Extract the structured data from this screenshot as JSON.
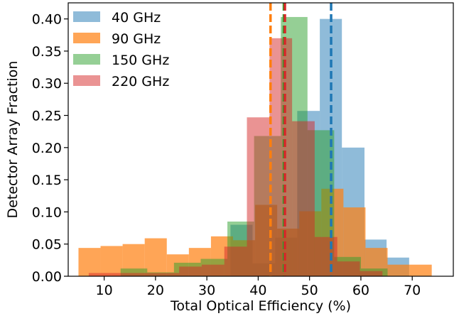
{
  "chart_data": {
    "type": "bar",
    "title": "",
    "xlabel": "Total Optical Efficiency (%)",
    "ylabel": "Detector Array Fraction",
    "xlim": [
      3,
      78
    ],
    "ylim": [
      0,
      0.425
    ],
    "xticks": [
      "10",
      "20",
      "30",
      "40",
      "50",
      "60",
      "70"
    ],
    "yticks": [
      "0.00",
      "0.05",
      "0.10",
      "0.15",
      "0.20",
      "0.25",
      "0.30",
      "0.35",
      "0.40"
    ],
    "xtick_values": [
      10,
      20,
      30,
      40,
      50,
      60,
      70
    ],
    "ytick_values": [
      0,
      0.05,
      0.1,
      0.15,
      0.2,
      0.25,
      0.3,
      0.35,
      0.4
    ],
    "grid": false,
    "legend_position": "top-left",
    "series": [
      {
        "name": "40 GHz",
        "color": "#1f77b4",
        "alpha": 0.5,
        "median_line": 54.2,
        "bins": [
          {
            "x0": 34.6,
            "x1": 38.9,
            "y": 0.08
          },
          {
            "x0": 38.9,
            "x1": 43.3,
            "y": 0.02
          },
          {
            "x0": 43.3,
            "x1": 47.6,
            "y": 0.06
          },
          {
            "x0": 47.6,
            "x1": 52.0,
            "y": 0.257
          },
          {
            "x0": 52.0,
            "x1": 56.3,
            "y": 0.4
          },
          {
            "x0": 56.3,
            "x1": 60.7,
            "y": 0.2
          },
          {
            "x0": 60.7,
            "x1": 65.0,
            "y": 0.057
          },
          {
            "x0": 65.0,
            "x1": 69.4,
            "y": 0.029
          }
        ]
      },
      {
        "name": "90 GHz",
        "color": "#ff7f0e",
        "alpha": 0.7,
        "median_line": 42.4,
        "bins": [
          {
            "x0": 5.0,
            "x1": 9.3,
            "y": 0.044
          },
          {
            "x0": 9.3,
            "x1": 13.6,
            "y": 0.047
          },
          {
            "x0": 13.6,
            "x1": 17.9,
            "y": 0.05
          },
          {
            "x0": 17.9,
            "x1": 22.2,
            "y": 0.059
          },
          {
            "x0": 22.2,
            "x1": 26.5,
            "y": 0.034
          },
          {
            "x0": 26.5,
            "x1": 30.8,
            "y": 0.044
          },
          {
            "x0": 30.8,
            "x1": 35.1,
            "y": 0.062
          },
          {
            "x0": 35.1,
            "x1": 39.4,
            "y": 0.056
          },
          {
            "x0": 39.4,
            "x1": 43.7,
            "y": 0.111
          },
          {
            "x0": 43.7,
            "x1": 48.0,
            "y": 0.074
          },
          {
            "x0": 48.0,
            "x1": 52.3,
            "y": 0.101
          },
          {
            "x0": 52.3,
            "x1": 56.6,
            "y": 0.136
          },
          {
            "x0": 56.6,
            "x1": 60.9,
            "y": 0.107
          },
          {
            "x0": 60.9,
            "x1": 65.2,
            "y": 0.044
          },
          {
            "x0": 65.2,
            "x1": 69.5,
            "y": 0.018
          },
          {
            "x0": 69.5,
            "x1": 73.8,
            "y": 0.018
          }
        ]
      },
      {
        "name": "150 GHz",
        "color": "#2ca02c",
        "alpha": 0.5,
        "median_line": 45.0,
        "bins": [
          {
            "x0": 8.0,
            "x1": 13.2,
            "y": 0.0
          },
          {
            "x0": 13.2,
            "x1": 18.4,
            "y": 0.012
          },
          {
            "x0": 18.4,
            "x1": 23.6,
            "y": 0.006
          },
          {
            "x0": 23.6,
            "x1": 28.8,
            "y": 0.021
          },
          {
            "x0": 28.8,
            "x1": 34.0,
            "y": 0.027
          },
          {
            "x0": 34.0,
            "x1": 39.2,
            "y": 0.085
          },
          {
            "x0": 39.2,
            "x1": 44.4,
            "y": 0.218
          },
          {
            "x0": 44.4,
            "x1": 49.6,
            "y": 0.403
          },
          {
            "x0": 49.6,
            "x1": 54.8,
            "y": 0.227
          },
          {
            "x0": 54.8,
            "x1": 60.0,
            "y": 0.03
          },
          {
            "x0": 60.0,
            "x1": 65.2,
            "y": 0.012
          }
        ]
      },
      {
        "name": "220 GHz",
        "color": "#d62728",
        "alpha": 0.5,
        "median_line": 45.2,
        "bins": [
          {
            "x0": 7.0,
            "x1": 11.4,
            "y": 0.005
          },
          {
            "x0": 11.4,
            "x1": 15.8,
            "y": 0.005
          },
          {
            "x0": 15.8,
            "x1": 20.2,
            "y": 0.005
          },
          {
            "x0": 20.2,
            "x1": 24.6,
            "y": 0.005
          },
          {
            "x0": 24.6,
            "x1": 29.0,
            "y": 0.015
          },
          {
            "x0": 29.0,
            "x1": 33.4,
            "y": 0.018
          },
          {
            "x0": 33.4,
            "x1": 37.8,
            "y": 0.046
          },
          {
            "x0": 37.8,
            "x1": 42.2,
            "y": 0.247
          },
          {
            "x0": 42.2,
            "x1": 46.6,
            "y": 0.37
          },
          {
            "x0": 46.6,
            "x1": 51.0,
            "y": 0.241
          },
          {
            "x0": 51.0,
            "x1": 55.4,
            "y": 0.061
          },
          {
            "x0": 55.4,
            "x1": 59.8,
            "y": 0.023
          },
          {
            "x0": 59.8,
            "x1": 64.2,
            "y": 0.008
          }
        ]
      }
    ]
  }
}
